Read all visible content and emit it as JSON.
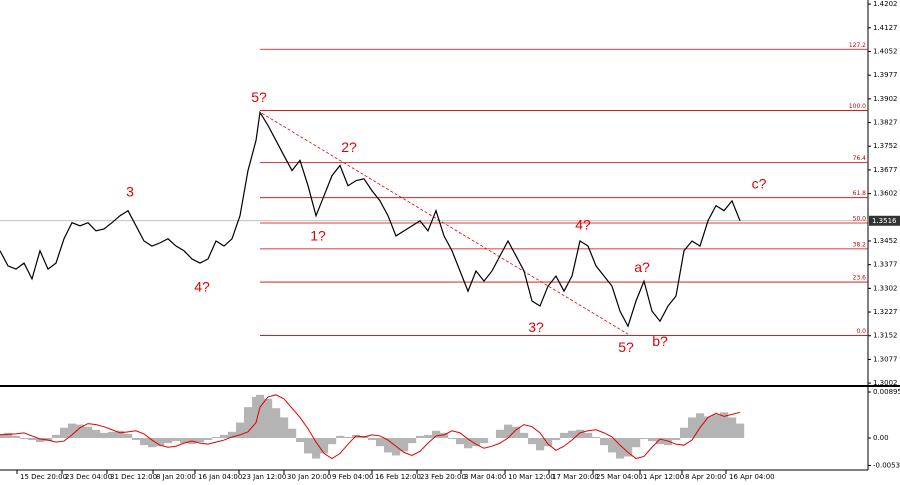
{
  "chart_data": {
    "type": "line",
    "color": "#000000",
    "x": [
      0,
      2,
      4,
      6,
      8,
      10,
      12,
      14,
      16,
      18,
      20,
      22,
      24,
      26,
      28,
      30,
      32,
      34,
      36,
      38,
      40,
      42,
      44,
      46,
      48,
      50,
      52,
      54,
      56,
      58,
      60,
      62,
      64,
      65,
      67,
      69,
      71,
      73,
      75,
      77,
      79,
      81,
      83,
      85,
      87,
      89,
      91,
      93,
      95,
      97,
      99,
      101,
      103,
      105,
      107,
      109,
      111,
      113,
      115,
      117,
      119,
      121,
      123,
      125,
      127,
      129,
      131,
      133,
      135,
      137,
      139,
      141,
      143,
      145,
      147,
      149,
      151,
      153,
      155,
      157,
      159,
      161,
      163,
      165,
      167,
      169,
      171,
      173,
      175,
      177,
      179,
      181,
      183,
      185
    ],
    "values": [
      1.3421,
      1.3373,
      1.3363,
      1.3382,
      1.3332,
      1.3421,
      1.3363,
      1.3382,
      1.3459,
      1.351,
      1.35,
      1.351,
      1.3484,
      1.349,
      1.351,
      1.3532,
      1.3548,
      1.35,
      1.3452,
      1.3436,
      1.3446,
      1.3459,
      1.3436,
      1.3421,
      1.3395,
      1.3382,
      1.3395,
      1.3452,
      1.3436,
      1.3459,
      1.3532,
      1.3675,
      1.377,
      1.3859,
      1.3818,
      1.377,
      1.3722,
      1.3675,
      1.3707,
      1.3627,
      1.3532,
      1.3595,
      1.3659,
      1.3691,
      1.3627,
      1.3643,
      1.3649,
      1.3611,
      1.3579,
      1.3532,
      1.3468,
      1.3484,
      1.35,
      1.3516,
      1.3484,
      1.3548,
      1.3468,
      1.3421,
      1.3357,
      1.3293,
      1.3357,
      1.3325,
      1.3357,
      1.3405,
      1.3452,
      1.3405,
      1.3357,
      1.3262,
      1.3246,
      1.3309,
      1.3341,
      1.3293,
      1.3341,
      1.3452,
      1.3436,
      1.3373,
      1.3341,
      1.3309,
      1.323,
      1.3182,
      1.3262,
      1.3325,
      1.323,
      1.3198,
      1.3246,
      1.3278,
      1.3421,
      1.3452,
      1.3436,
      1.3516,
      1.3564,
      1.3548,
      1.3579,
      1.3516
    ],
    "xlim": [
      0,
      217
    ],
    "ylim": [
      1.2996,
      1.4215
    ],
    "yticks": [
      1.4202,
      1.4127,
      1.4052,
      1.3977,
      1.3902,
      1.3827,
      1.3752,
      1.3677,
      1.3602,
      1.3452,
      1.3377,
      1.3302,
      1.3227,
      1.3152,
      1.3077,
      1.3002
    ],
    "xticks": [
      {
        "value": 4.25,
        "label": "15 Dec 20:00"
      },
      {
        "value": 15.5,
        "label": "23 Dec 04:00"
      },
      {
        "value": 26.75,
        "label": "31 Dec 12:00"
      },
      {
        "value": 38.25,
        "label": "8 Jan 20:00"
      },
      {
        "value": 48.75,
        "label": "16 Jan 04:00"
      },
      {
        "value": 59.75,
        "label": "23 Jan 12:00"
      },
      {
        "value": 71,
        "label": "30 Jan 20:00"
      },
      {
        "value": 82.25,
        "label": "9 Feb 04:00"
      },
      {
        "value": 93,
        "label": "16 Feb 12:00"
      },
      {
        "value": 104.25,
        "label": "23 Feb 20:00"
      },
      {
        "value": 115.25,
        "label": "3 Mar 04:00"
      },
      {
        "value": 126.25,
        "label": "10 Mar 12:00"
      },
      {
        "value": 137.25,
        "label": "17 Mar 20:00"
      },
      {
        "value": 148.25,
        "label": "25 Mar 04:00"
      },
      {
        "value": 160,
        "label": "1 Apr 12:00"
      },
      {
        "value": 170.5,
        "label": "8 Apr 20:00"
      },
      {
        "value": 181.5,
        "label": "16 Apr 04:00"
      }
    ],
    "current_price": 1.3516,
    "fib_start_x": 65,
    "fib_levels": [
      {
        "label": "0.0",
        "price": 1.3153
      },
      {
        "label": "23.6",
        "price": 1.3322
      },
      {
        "label": "38.2",
        "price": 1.3427
      },
      {
        "label": "50.0",
        "price": 1.3509
      },
      {
        "label": "61.8",
        "price": 1.3589
      },
      {
        "label": "76.4",
        "price": 1.37
      },
      {
        "label": "100.0",
        "price": 1.3865
      },
      {
        "label": "127.2",
        "price": 1.4059
      }
    ],
    "trendline": {
      "x": [
        65.5,
        157
      ],
      "y": [
        1.3856,
        1.3157
      ]
    },
    "annotations": [
      {
        "text": "3",
        "x": 32.5,
        "y": 1.3605
      },
      {
        "text": "4?",
        "x": 50.5,
        "y": 1.3303
      },
      {
        "text": "5?",
        "x": 64.75,
        "y": 1.3904
      },
      {
        "text": "1?",
        "x": 79.5,
        "y": 1.3465
      },
      {
        "text": "2?",
        "x": 87.25,
        "y": 1.3745
      },
      {
        "text": "3?",
        "x": 134,
        "y": 1.3176
      },
      {
        "text": "4?",
        "x": 145.75,
        "y": 1.35
      },
      {
        "text": "5?",
        "x": 156.5,
        "y": 1.3112
      },
      {
        "text": "a?",
        "x": 160.5,
        "y": 1.3366
      },
      {
        "text": "b?",
        "x": 165,
        "y": 1.3131
      },
      {
        "text": "c?",
        "x": 189.75,
        "y": 1.363
      }
    ],
    "oscillator": {
      "type": "histogram",
      "color": "#b4b4b4",
      "signal_color": "#e00000",
      "values": [
        0.0008,
        0.001,
        0.0004,
        -0.0002,
        -0.0004,
        -0.0008,
        -0.0006,
        0.0006,
        0.002,
        0.0028,
        0.0026,
        0.0022,
        0.0016,
        0.001,
        0.0012,
        0.0014,
        0.0008,
        -0.0004,
        -0.0014,
        -0.0018,
        -0.0016,
        -0.001,
        -0.0006,
        -0.001,
        -0.0012,
        -0.0008,
        -0.0004,
        0.0002,
        0.0006,
        0.0012,
        0.003,
        0.006,
        0.008,
        0.0084,
        0.0076,
        0.0058,
        0.004,
        0.0018,
        -0.0008,
        -0.003,
        -0.004,
        -0.003,
        -0.0012,
        0.0004,
        0.0002,
        0.0006,
        0.0004,
        -0.0004,
        -0.0016,
        -0.0028,
        -0.0034,
        -0.0026,
        -0.001,
        0.0004,
        0.0006,
        0.0014,
        0.001,
        -0.0002,
        -0.0012,
        -0.002,
        -0.0016,
        -0.001,
        0,
        0.0016,
        0.0026,
        0.0022,
        0.001,
        -0.0012,
        -0.0024,
        -0.0016,
        -0.0004,
        0.001,
        0.0014,
        0.0016,
        0.001,
        0.0002,
        -0.0014,
        -0.0028,
        -0.004,
        -0.0036,
        -0.0018,
        -0.0002,
        -0.0006,
        -0.0012,
        -0.0014,
        -0.0004,
        0.002,
        0.004,
        0.0048,
        0.0042,
        0.0046,
        0.005,
        0.004,
        0.0028
      ],
      "signal": [
        0.0006,
        0.0007,
        0.0008,
        0.001,
        0.0004,
        -0.0002,
        -0.0004,
        -0.0008,
        -0.0006,
        0.0006,
        0.002,
        0.0028,
        0.0026,
        0.0022,
        0.0016,
        0.001,
        0.0012,
        0.0014,
        0.0008,
        -0.0004,
        -0.0014,
        -0.0018,
        -0.0016,
        -0.001,
        -0.0006,
        -0.001,
        -0.0012,
        -0.0008,
        -0.0004,
        0.0002,
        0.0006,
        0.0012,
        0.003,
        0.006,
        0.008,
        0.0084,
        0.0076,
        0.0058,
        0.004,
        0.0018,
        -0.0008,
        -0.003,
        -0.004,
        -0.003,
        -0.0012,
        0.0004,
        0.0002,
        0.0006,
        0.0004,
        -0.0004,
        -0.0016,
        -0.0028,
        -0.0034,
        -0.0026,
        -0.001,
        0.0004,
        0.0006,
        0.0014,
        0.001,
        -0.0002,
        -0.0012,
        -0.002,
        -0.0016,
        -0.001,
        0,
        0.0016,
        0.0026,
        0.0022,
        0.001,
        -0.0012,
        -0.0024,
        -0.0016,
        -0.0004,
        0.001,
        0.0014,
        0.0016,
        0.001,
        0.0002,
        -0.0014,
        -0.0028,
        -0.004,
        -0.0036,
        -0.0018,
        -0.0002,
        -0.0006,
        -0.0012,
        -0.0014,
        -0.0004,
        0.002,
        0.004,
        0.0048,
        0.0042,
        0.0046,
        0.005
      ],
      "ylim": [
        -0.00623,
        0.00973
      ],
      "yticks": [
        0.00895,
        {
          "value": 0,
          "label": "0.00"
        },
        -0.00534
      ]
    }
  }
}
